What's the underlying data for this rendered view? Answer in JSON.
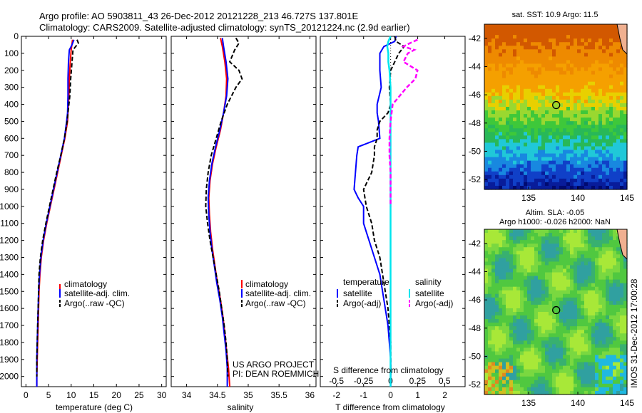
{
  "header": {
    "line1": "Argo profile: AO 5903811_43 26-Dec-2012 20121228_213 46.727S 137.801E",
    "line2": "Climatology: CARS2009. Satellite-adjusted climatology: synTS_20121224.nc (2.9d earlier)"
  },
  "colors": {
    "climatology": "#ff0000",
    "satellite": "#0000ff",
    "argo": "#000000",
    "satellite_s": "#00e5ee",
    "argo_s": "#ff00ff"
  },
  "depth_ticks": [
    "0",
    "100",
    "200",
    "300",
    "400",
    "500",
    "600",
    "700",
    "800",
    "900",
    "1000",
    "1100",
    "1200",
    "1300",
    "1400",
    "1500",
    "1600",
    "1700",
    "1800",
    "1900",
    "2000"
  ],
  "panels": {
    "temperature": {
      "xlabel": "temperature (deg C)",
      "xticks": [
        "0",
        "5",
        "10",
        "15",
        "20",
        "25",
        "30"
      ],
      "legend": [
        "climatology",
        "satellite-adj. clim.",
        "Argo(..raw -QC)"
      ]
    },
    "salinity": {
      "xlabel": "salinity",
      "xticks": [
        "34",
        "34.5",
        "35",
        "35.5",
        "36"
      ],
      "legend": [
        "climatology",
        "satellite-adj. clim.",
        "Argo(..raw -QC)"
      ],
      "project": "US ARGO PROJECT",
      "pi": "PI: DEAN ROEMMICH"
    },
    "difference": {
      "xlabel": "T difference from climatology",
      "xticks": [
        "-2",
        "-1",
        "0",
        "1",
        "2"
      ],
      "s_label": "S difference from climatology",
      "s_ticks": [
        "-0.5",
        "-0.25",
        "0",
        "0.25",
        "0.5"
      ],
      "legend_t_title": "temperature",
      "legend_s_title": "salinity",
      "legend_t": [
        "satellite",
        "Argo(-adj)"
      ],
      "legend_s": [
        "satellite",
        "Argo(-adj)"
      ]
    }
  },
  "maps": {
    "sst": {
      "title": "sat. SST: 10.9 Argo: 11.5",
      "yticks": [
        "-42",
        "-44",
        "-46",
        "-48",
        "-50",
        "-52"
      ],
      "xticks": [
        "135",
        "140",
        "145"
      ]
    },
    "sla": {
      "title1": "Altim. SLA: -0.05",
      "title2": "Argo h1000: -0.026 h2000: NaN",
      "yticks": [
        "-42",
        "-44",
        "-46",
        "-48",
        "-50",
        "-52"
      ],
      "xticks": [
        "135",
        "140",
        "145"
      ]
    }
  },
  "watermark": "IMOS 31-Dec-2012 17:00:28",
  "chart_data": [
    {
      "type": "line",
      "ylabel": "",
      "xlabel": "temperature (deg C)",
      "xlim": [
        -1,
        31
      ],
      "ylim": [
        2060,
        0
      ],
      "series": [
        {
          "name": "climatology",
          "y": [
            20,
            80,
            150,
            250,
            350,
            450,
            500,
            600,
            700,
            800,
            900,
            1000,
            1100,
            1200,
            1300,
            1400,
            1500,
            1600,
            1700,
            1800,
            1900,
            2000,
            2060
          ],
          "x": [
            10.3,
            10.0,
            9.8,
            9.6,
            9.5,
            9.3,
            9.2,
            8.6,
            7.8,
            7.0,
            6.2,
            5.4,
            4.6,
            3.9,
            3.4,
            3.1,
            2.9,
            2.8,
            2.7,
            2.6,
            2.5,
            2.4,
            2.4
          ]
        },
        {
          "name": "satellite-adj. clim.",
          "y": [
            20,
            50,
            80,
            150,
            250,
            350,
            450,
            500,
            600,
            700,
            800,
            900,
            1000,
            1100,
            1200,
            1300,
            1400,
            1500,
            1600,
            1700,
            1800,
            1900,
            2000,
            2060
          ],
          "x": [
            10.6,
            10.2,
            9.6,
            9.4,
            9.3,
            9.3,
            9.2,
            9.0,
            8.5,
            7.7,
            6.9,
            6.1,
            5.3,
            4.5,
            3.8,
            3.3,
            3.0,
            2.8,
            2.7,
            2.6,
            2.5,
            2.4,
            2.4,
            2.4
          ]
        },
        {
          "name": "Argo(..raw -QC)",
          "y": [
            20,
            40,
            60,
            80,
            150,
            250,
            350,
            450,
            500,
            600,
            700,
            800,
            900,
            1000,
            1100,
            1200,
            1300,
            1400,
            1500,
            1600,
            1700,
            1800,
            1900,
            2000
          ],
          "x": [
            11.3,
            11.6,
            11.0,
            10.4,
            10.2,
            9.9,
            9.7,
            9.3,
            9.1,
            8.5,
            7.7,
            6.8,
            6.0,
            5.2,
            4.4,
            3.7,
            3.2,
            2.9,
            2.8,
            2.7,
            2.6,
            2.5,
            2.4,
            2.4
          ]
        }
      ]
    },
    {
      "type": "line",
      "xlabel": "salinity",
      "xlim": [
        33.75,
        36.1
      ],
      "ylim": [
        2060,
        0
      ],
      "series": [
        {
          "name": "climatology",
          "y": [
            10,
            60,
            150,
            250,
            350,
            450,
            550,
            650,
            750,
            850,
            950,
            1050,
            1150,
            1250,
            1350,
            1450,
            1550,
            1650,
            1750,
            1850,
            1950,
            2060
          ],
          "x": [
            34.55,
            34.58,
            34.62,
            34.65,
            34.64,
            34.6,
            34.55,
            34.48,
            34.42,
            34.38,
            34.36,
            34.37,
            34.39,
            34.42,
            34.46,
            34.5,
            34.55,
            34.59,
            34.62,
            34.65,
            34.68,
            34.7
          ]
        },
        {
          "name": "satellite-adj. clim.",
          "y": [
            10,
            60,
            150,
            250,
            350,
            450,
            550,
            650,
            750,
            850,
            950,
            1050,
            1150,
            1250,
            1350,
            1450,
            1550,
            1650,
            1750,
            1850,
            1950,
            2060
          ],
          "x": [
            34.58,
            34.6,
            34.64,
            34.67,
            34.65,
            34.6,
            34.54,
            34.47,
            34.41,
            34.37,
            34.35,
            34.36,
            34.38,
            34.41,
            34.45,
            34.49,
            34.54,
            34.58,
            34.61,
            34.64,
            34.66,
            34.66
          ]
        },
        {
          "name": "Argo(..raw -QC)",
          "y": [
            10,
            40,
            80,
            150,
            200,
            250,
            300,
            400,
            500,
            600,
            700,
            800,
            900,
            1000,
            1100,
            1200,
            1300,
            1400,
            1500,
            1600,
            1700,
            1800,
            1900,
            2000
          ],
          "x": [
            34.8,
            34.85,
            34.78,
            34.7,
            34.85,
            34.9,
            34.8,
            34.66,
            34.56,
            34.48,
            34.4,
            34.35,
            34.32,
            34.31,
            34.34,
            34.38,
            34.43,
            34.48,
            34.53,
            34.57,
            34.61,
            34.64,
            34.66,
            34.67
          ]
        }
      ]
    },
    {
      "type": "line",
      "xlabel": "T difference from climatology",
      "xlim": [
        -2.6,
        2.75
      ],
      "ylim": [
        2060,
        0
      ],
      "series": [
        {
          "name": "satellite",
          "y": [
            0,
            30,
            60,
            100,
            200,
            300,
            400,
            450,
            500,
            600,
            650,
            700,
            800,
            900,
            950,
            1000,
            1100,
            1200,
            1300,
            1400,
            1500,
            1600,
            1700,
            1800,
            1900,
            2000,
            2060
          ],
          "x": [
            0.2,
            0.15,
            -0.25,
            -0.4,
            -0.4,
            -0.35,
            -0.5,
            -0.5,
            -0.45,
            -0.4,
            -1.2,
            -1.25,
            -1.3,
            -1.35,
            -1.2,
            -1.0,
            -1.0,
            -0.8,
            -0.6,
            -0.4,
            -0.3,
            -0.2,
            -0.1,
            -0.05,
            0,
            0,
            0
          ]
        },
        {
          "name": "Argo(-adj)",
          "y": [
            0,
            30,
            60,
            100,
            200,
            300,
            400,
            450,
            500,
            550,
            600,
            650,
            700,
            800,
            900,
            1000,
            1100,
            1200,
            1300,
            1400,
            1500,
            1600,
            1700,
            1800,
            1900,
            2000
          ],
          "x": [
            0.15,
            0.2,
            0.5,
            0.3,
            0.0,
            -0.05,
            0.0,
            -0.1,
            -0.4,
            -0.5,
            -0.5,
            -0.6,
            -0.6,
            -0.7,
            -1.0,
            -0.9,
            -0.7,
            -0.6,
            -0.4,
            -0.3,
            -0.2,
            -0.1,
            -0.05,
            0,
            0,
            0
          ]
        }
      ]
    },
    {
      "type": "line",
      "xlabel": "S difference from climatology",
      "xlim": [
        -0.65,
        0.69
      ],
      "ylim": [
        2060,
        0
      ],
      "series": [
        {
          "name": "satellite",
          "y": [
            0,
            30,
            60,
            100,
            150,
            200,
            300,
            400,
            500,
            600,
            700,
            800,
            900,
            1000,
            1200,
            1400,
            1600,
            1800,
            2000,
            2060
          ],
          "x": [
            0.0,
            -0.02,
            -0.03,
            -0.02,
            -0.02,
            -0.01,
            0,
            0,
            0,
            0,
            0,
            0,
            0,
            0,
            0,
            0,
            0,
            0,
            0,
            0
          ]
        },
        {
          "name": "Argo(-adj)",
          "y": [
            20,
            40,
            60,
            80,
            100,
            150,
            200,
            250,
            300,
            400,
            500,
            600,
            700,
            800,
            900,
            1000
          ],
          "x": [
            0.25,
            0.18,
            0.12,
            0.22,
            0.16,
            0.12,
            0.25,
            0.23,
            0.15,
            0.02,
            0,
            -0.01,
            -0.01,
            0,
            0,
            0
          ]
        }
      ]
    },
    {
      "type": "heatmap",
      "title": "sat. SST: 10.9 Argo: 11.5",
      "xlim": [
        130.5,
        145
      ],
      "ylim": [
        -52.7,
        -41
      ],
      "marker": {
        "lon": 137.801,
        "lat": -46.727
      }
    },
    {
      "type": "heatmap",
      "title": "Altim. SLA: -0.05",
      "subtitle": "Argo h1000: -0.026 h2000: NaN",
      "xlim": [
        130.5,
        145
      ],
      "ylim": [
        -52.7,
        -41
      ],
      "marker": {
        "lon": 137.801,
        "lat": -46.727
      }
    }
  ]
}
